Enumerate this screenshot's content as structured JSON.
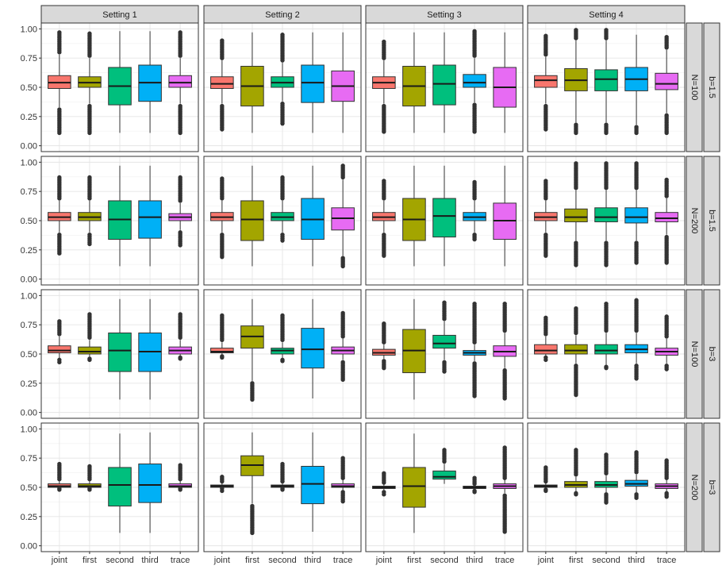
{
  "chart_data": {
    "type": "boxplot",
    "title": "",
    "xlabel": "",
    "ylabel": "",
    "ylim": [
      0,
      1
    ],
    "y_ticks": [
      "0.00",
      "0.25",
      "0.50",
      "0.75",
      "1.00"
    ],
    "categories": [
      "joint",
      "first",
      "second",
      "third",
      "trace"
    ],
    "columns": [
      "Setting 1",
      "Setting 2",
      "Setting 3",
      "Setting 4"
    ],
    "rows": [
      {
        "n_label": "N=100",
        "b_label": "b=1.5"
      },
      {
        "n_label": "N=200",
        "b_label": "b=1.5"
      },
      {
        "n_label": "N=100",
        "b_label": "b=3"
      },
      {
        "n_label": "N=200",
        "b_label": "b=3"
      }
    ],
    "colors": {
      "joint": "#F8766D",
      "first": "#A3A500",
      "second": "#00BF7D",
      "third": "#00B0F6",
      "trace": "#E76BF3"
    },
    "panels": [
      [
        {
          "q1": 0.49,
          "med": 0.54,
          "q3": 0.6,
          "lo": 0.33,
          "hi": 0.78,
          "out_lo": [
            0.11,
            0.31
          ],
          "out_hi": [
            0.8,
            0.97
          ]
        },
        {
          "q1": 0.5,
          "med": 0.54,
          "q3": 0.59,
          "lo": 0.36,
          "hi": 0.75,
          "out_lo": [
            0.11,
            0.34
          ],
          "out_hi": [
            0.77,
            0.96
          ]
        },
        {
          "q1": 0.35,
          "med": 0.51,
          "q3": 0.67,
          "lo": 0.11,
          "hi": 0.98
        },
        {
          "q1": 0.38,
          "med": 0.54,
          "q3": 0.69,
          "lo": 0.11,
          "hi": 0.98
        },
        {
          "q1": 0.5,
          "med": 0.54,
          "q3": 0.6,
          "lo": 0.36,
          "hi": 0.75,
          "out_lo": [
            0.11,
            0.34
          ],
          "out_hi": [
            0.77,
            0.97
          ]
        }
      ],
      [
        {
          "q1": 0.49,
          "med": 0.53,
          "q3": 0.59,
          "lo": 0.36,
          "hi": 0.73,
          "out_lo": [
            0.14,
            0.34
          ],
          "out_hi": [
            0.75,
            0.9
          ]
        },
        {
          "q1": 0.34,
          "med": 0.51,
          "q3": 0.68,
          "lo": 0.11,
          "hi": 0.97
        },
        {
          "q1": 0.5,
          "med": 0.54,
          "q3": 0.59,
          "lo": 0.38,
          "hi": 0.71,
          "out_lo": [
            0.19,
            0.36
          ],
          "out_hi": [
            0.73,
            0.95
          ]
        },
        {
          "q1": 0.37,
          "med": 0.54,
          "q3": 0.69,
          "lo": 0.11,
          "hi": 0.97
        },
        {
          "q1": 0.38,
          "med": 0.51,
          "q3": 0.64,
          "lo": 0.11,
          "hi": 0.97
        }
      ],
      [
        {
          "q1": 0.49,
          "med": 0.54,
          "q3": 0.59,
          "lo": 0.36,
          "hi": 0.73,
          "out_lo": [
            0.12,
            0.34
          ],
          "out_hi": [
            0.75,
            0.89
          ]
        },
        {
          "q1": 0.34,
          "med": 0.51,
          "q3": 0.68,
          "lo": 0.11,
          "hi": 0.97
        },
        {
          "q1": 0.35,
          "med": 0.53,
          "q3": 0.69,
          "lo": 0.11,
          "hi": 0.97
        },
        {
          "q1": 0.5,
          "med": 0.54,
          "q3": 0.61,
          "lo": 0.37,
          "hi": 0.75,
          "out_lo": [
            0.12,
            0.35
          ],
          "out_hi": [
            0.77,
            0.98
          ]
        },
        {
          "q1": 0.33,
          "med": 0.5,
          "q3": 0.67,
          "lo": 0.11,
          "hi": 0.97
        }
      ],
      [
        {
          "q1": 0.5,
          "med": 0.56,
          "q3": 0.6,
          "lo": 0.36,
          "hi": 0.76,
          "out_lo": [
            0.14,
            0.34
          ],
          "out_hi": [
            0.78,
            0.94
          ]
        },
        {
          "q1": 0.47,
          "med": 0.56,
          "q3": 0.66,
          "lo": 0.2,
          "hi": 0.9,
          "out_lo": [
            0.11,
            0.18
          ],
          "out_hi": [
            0.92,
            0.99
          ]
        },
        {
          "q1": 0.47,
          "med": 0.57,
          "q3": 0.65,
          "lo": 0.2,
          "hi": 0.9,
          "out_lo": [
            0.11,
            0.18
          ],
          "out_hi": [
            0.92,
            0.99
          ]
        },
        {
          "q1": 0.47,
          "med": 0.57,
          "q3": 0.67,
          "lo": 0.18,
          "hi": 0.95,
          "out_lo": [
            0.11,
            0.16
          ],
          "out_hi": []
        },
        {
          "q1": 0.48,
          "med": 0.53,
          "q3": 0.62,
          "lo": 0.28,
          "hi": 0.82,
          "out_lo": [
            0.11,
            0.26
          ],
          "out_hi": [
            0.84,
            0.93
          ]
        }
      ],
      [
        {
          "q1": 0.5,
          "med": 0.53,
          "q3": 0.57,
          "lo": 0.4,
          "hi": 0.67,
          "out_lo": [
            0.22,
            0.38
          ],
          "out_hi": [
            0.69,
            0.87
          ]
        },
        {
          "q1": 0.5,
          "med": 0.53,
          "q3": 0.57,
          "lo": 0.4,
          "hi": 0.67,
          "out_lo": [
            0.3,
            0.38
          ],
          "out_hi": [
            0.69,
            0.87
          ]
        },
        {
          "q1": 0.34,
          "med": 0.51,
          "q3": 0.67,
          "lo": 0.11,
          "hi": 0.97
        },
        {
          "q1": 0.35,
          "med": 0.53,
          "q3": 0.67,
          "lo": 0.11,
          "hi": 0.97
        },
        {
          "q1": 0.5,
          "med": 0.53,
          "q3": 0.56,
          "lo": 0.42,
          "hi": 0.65,
          "out_lo": [
            0.29,
            0.4
          ],
          "out_hi": [
            0.67,
            0.87
          ]
        }
      ],
      [
        {
          "q1": 0.5,
          "med": 0.53,
          "q3": 0.57,
          "lo": 0.4,
          "hi": 0.67,
          "out_lo": [
            0.19,
            0.38
          ],
          "out_hi": [
            0.69,
            0.86
          ]
        },
        {
          "q1": 0.33,
          "med": 0.51,
          "q3": 0.67,
          "lo": 0.11,
          "hi": 0.97
        },
        {
          "q1": 0.5,
          "med": 0.53,
          "q3": 0.57,
          "lo": 0.4,
          "hi": 0.67,
          "out_lo": [
            0.33,
            0.38
          ],
          "out_hi": [
            0.69,
            0.87
          ]
        },
        {
          "q1": 0.34,
          "med": 0.51,
          "q3": 0.69,
          "lo": 0.11,
          "hi": 0.97
        },
        {
          "q1": 0.42,
          "med": 0.52,
          "q3": 0.61,
          "lo": 0.2,
          "hi": 0.85,
          "out_lo": [
            0.11,
            0.18
          ],
          "out_hi": [
            0.87,
            0.97
          ]
        }
      ],
      [
        {
          "q1": 0.5,
          "med": 0.53,
          "q3": 0.57,
          "lo": 0.4,
          "hi": 0.67,
          "out_lo": [
            0.2,
            0.38
          ],
          "out_hi": [
            0.69,
            0.84
          ]
        },
        {
          "q1": 0.33,
          "med": 0.51,
          "q3": 0.69,
          "lo": 0.11,
          "hi": 0.97
        },
        {
          "q1": 0.36,
          "med": 0.54,
          "q3": 0.69,
          "lo": 0.11,
          "hi": 0.97
        },
        {
          "q1": 0.5,
          "med": 0.53,
          "q3": 0.57,
          "lo": 0.4,
          "hi": 0.67,
          "out_lo": [
            0.34,
            0.38
          ],
          "out_hi": [
            0.69,
            0.83
          ]
        },
        {
          "q1": 0.34,
          "med": 0.5,
          "q3": 0.65,
          "lo": 0.11,
          "hi": 0.97
        }
      ],
      [
        {
          "q1": 0.5,
          "med": 0.53,
          "q3": 0.57,
          "lo": 0.4,
          "hi": 0.67,
          "out_lo": [
            0.2,
            0.38
          ],
          "out_hi": [
            0.69,
            0.84
          ]
        },
        {
          "q1": 0.49,
          "med": 0.53,
          "q3": 0.6,
          "lo": 0.33,
          "hi": 0.76,
          "out_lo": [
            0.12,
            0.31
          ],
          "out_hi": [
            0.78,
            0.99
          ]
        },
        {
          "q1": 0.49,
          "med": 0.53,
          "q3": 0.61,
          "lo": 0.33,
          "hi": 0.76,
          "out_lo": [
            0.12,
            0.31
          ],
          "out_hi": [
            0.78,
            0.99
          ]
        },
        {
          "q1": 0.48,
          "med": 0.53,
          "q3": 0.61,
          "lo": 0.33,
          "hi": 0.76,
          "out_lo": [
            0.14,
            0.31
          ],
          "out_hi": [
            0.78,
            0.99
          ]
        },
        {
          "q1": 0.49,
          "med": 0.52,
          "q3": 0.57,
          "lo": 0.38,
          "hi": 0.69,
          "out_lo": [
            0.14,
            0.36
          ],
          "out_hi": [
            0.71,
            0.85
          ]
        }
      ],
      [
        {
          "q1": 0.51,
          "med": 0.53,
          "q3": 0.57,
          "lo": 0.43,
          "hi": 0.65,
          "out_lo": [
            0.43,
            0.45
          ],
          "out_hi": [
            0.67,
            0.78
          ]
        },
        {
          "q1": 0.5,
          "med": 0.52,
          "q3": 0.56,
          "lo": 0.45,
          "hi": 0.62,
          "out_lo": [
            0.45,
            0.46
          ],
          "out_hi": [
            0.64,
            0.84
          ]
        },
        {
          "q1": 0.35,
          "med": 0.53,
          "q3": 0.68,
          "lo": 0.11,
          "hi": 0.97
        },
        {
          "q1": 0.35,
          "med": 0.52,
          "q3": 0.68,
          "lo": 0.11,
          "hi": 0.97
        },
        {
          "q1": 0.5,
          "med": 0.53,
          "q3": 0.56,
          "lo": 0.46,
          "hi": 0.62,
          "out_lo": [
            0.46,
            0.47
          ],
          "out_hi": [
            0.64,
            0.84
          ]
        }
      ],
      [
        {
          "q1": 0.51,
          "med": 0.52,
          "q3": 0.55,
          "lo": 0.47,
          "hi": 0.6,
          "out_lo": [
            0.47,
            0.48
          ],
          "out_hi": [
            0.62,
            0.83
          ]
        },
        {
          "q1": 0.55,
          "med": 0.65,
          "q3": 0.74,
          "lo": 0.27,
          "hi": 0.97,
          "out_lo": [
            0.11,
            0.25
          ],
          "out_hi": []
        },
        {
          "q1": 0.5,
          "med": 0.53,
          "q3": 0.55,
          "lo": 0.46,
          "hi": 0.6,
          "out_lo": [
            0.44,
            0.45
          ],
          "out_hi": [
            0.62,
            0.83
          ]
        },
        {
          "q1": 0.38,
          "med": 0.54,
          "q3": 0.72,
          "lo": 0.12,
          "hi": 0.97
        },
        {
          "q1": 0.5,
          "med": 0.53,
          "q3": 0.56,
          "lo": 0.45,
          "hi": 0.63,
          "out_lo": [
            0.28,
            0.43
          ],
          "out_hi": [
            0.65,
            0.85
          ]
        }
      ],
      [
        {
          "q1": 0.49,
          "med": 0.51,
          "q3": 0.54,
          "lo": 0.46,
          "hi": 0.58,
          "out_lo": [
            0.38,
            0.44
          ],
          "out_hi": [
            0.6,
            0.76
          ]
        },
        {
          "q1": 0.34,
          "med": 0.53,
          "q3": 0.71,
          "lo": 0.11,
          "hi": 0.97
        },
        {
          "q1": 0.55,
          "med": 0.59,
          "q3": 0.66,
          "lo": 0.45,
          "hi": 0.78,
          "out_lo": [
            0.35,
            0.43
          ],
          "out_hi": [
            0.8,
            0.94
          ]
        },
        {
          "q1": 0.49,
          "med": 0.51,
          "q3": 0.53,
          "lo": 0.44,
          "hi": 0.58,
          "out_lo": [
            0.14,
            0.42
          ],
          "out_hi": [
            0.6,
            0.93
          ]
        },
        {
          "q1": 0.48,
          "med": 0.52,
          "q3": 0.57,
          "lo": 0.38,
          "hi": 0.68,
          "out_lo": [
            0.12,
            0.36
          ],
          "out_hi": [
            0.7,
            0.93
          ]
        }
      ],
      [
        {
          "q1": 0.5,
          "med": 0.53,
          "q3": 0.58,
          "lo": 0.45,
          "hi": 0.65,
          "out_lo": [
            0.45,
            0.47
          ],
          "out_hi": [
            0.67,
            0.81
          ]
        },
        {
          "q1": 0.5,
          "med": 0.53,
          "q3": 0.58,
          "lo": 0.42,
          "hi": 0.66,
          "out_lo": [
            0.15,
            0.4
          ],
          "out_hi": [
            0.68,
            0.89
          ]
        },
        {
          "q1": 0.5,
          "med": 0.53,
          "q3": 0.58,
          "lo": 0.4,
          "hi": 0.68,
          "out_lo": [
            0.38,
            0.39
          ],
          "out_hi": [
            0.7,
            0.93
          ]
        },
        {
          "q1": 0.51,
          "med": 0.54,
          "q3": 0.58,
          "lo": 0.42,
          "hi": 0.68,
          "out_lo": [
            0.29,
            0.4
          ],
          "out_hi": [
            0.7,
            0.96
          ]
        },
        {
          "q1": 0.49,
          "med": 0.52,
          "q3": 0.55,
          "lo": 0.42,
          "hi": 0.63,
          "out_lo": [
            0.37,
            0.4
          ],
          "out_hi": [
            0.65,
            0.82
          ]
        }
      ],
      [
        {
          "q1": 0.5,
          "med": 0.51,
          "q3": 0.53,
          "lo": 0.48,
          "hi": 0.56,
          "out_lo": [
            0.48,
            0.49
          ],
          "out_hi": [
            0.57,
            0.7
          ]
        },
        {
          "q1": 0.5,
          "med": 0.51,
          "q3": 0.53,
          "lo": 0.48,
          "hi": 0.56,
          "out_lo": [
            0.48,
            0.49
          ],
          "out_hi": [
            0.57,
            0.68
          ]
        },
        {
          "q1": 0.34,
          "med": 0.52,
          "q3": 0.67,
          "lo": 0.11,
          "hi": 0.96
        },
        {
          "q1": 0.37,
          "med": 0.52,
          "q3": 0.7,
          "lo": 0.11,
          "hi": 0.97
        },
        {
          "q1": 0.5,
          "med": 0.51,
          "q3": 0.53,
          "lo": 0.48,
          "hi": 0.56,
          "out_lo": [
            0.48,
            0.49
          ],
          "out_hi": [
            0.57,
            0.69
          ]
        }
      ],
      [
        {
          "q1": 0.5,
          "med": 0.51,
          "q3": 0.52,
          "lo": 0.49,
          "hi": 0.54,
          "out_lo": [
            0.47,
            0.49
          ],
          "out_hi": [
            0.55,
            0.59
          ]
        },
        {
          "q1": 0.6,
          "med": 0.69,
          "q3": 0.77,
          "lo": 0.36,
          "hi": 0.97,
          "out_lo": [
            0.11,
            0.34
          ],
          "out_hi": []
        },
        {
          "q1": 0.5,
          "med": 0.51,
          "q3": 0.52,
          "lo": 0.48,
          "hi": 0.54,
          "out_lo": [
            0.48,
            0.49
          ],
          "out_hi": [
            0.55,
            0.7
          ]
        },
        {
          "q1": 0.36,
          "med": 0.53,
          "q3": 0.68,
          "lo": 0.12,
          "hi": 0.97
        },
        {
          "q1": 0.5,
          "med": 0.51,
          "q3": 0.53,
          "lo": 0.47,
          "hi": 0.57,
          "out_lo": [
            0.38,
            0.46
          ],
          "out_hi": [
            0.58,
            0.75
          ]
        }
      ],
      [
        {
          "q1": 0.49,
          "med": 0.5,
          "q3": 0.51,
          "lo": 0.47,
          "hi": 0.53,
          "out_lo": [
            0.44,
            0.46
          ],
          "out_hi": [
            0.54,
            0.62
          ]
        },
        {
          "q1": 0.33,
          "med": 0.51,
          "q3": 0.67,
          "lo": 0.11,
          "hi": 0.96
        },
        {
          "q1": 0.57,
          "med": 0.59,
          "q3": 0.64,
          "lo": 0.53,
          "hi": 0.7,
          "out_lo": [],
          "out_hi": [
            0.72,
            0.82
          ]
        },
        {
          "q1": 0.49,
          "med": 0.5,
          "q3": 0.51,
          "lo": 0.48,
          "hi": 0.52,
          "out_lo": [
            0.46,
            0.47
          ],
          "out_hi": [
            0.53,
            0.58
          ]
        },
        {
          "q1": 0.49,
          "med": 0.51,
          "q3": 0.53,
          "lo": 0.45,
          "hi": 0.57,
          "out_lo": [
            0.12,
            0.43
          ],
          "out_hi": [
            0.58,
            0.84
          ]
        }
      ],
      [
        {
          "q1": 0.5,
          "med": 0.51,
          "q3": 0.52,
          "lo": 0.48,
          "hi": 0.54,
          "out_lo": [
            0.47,
            0.48
          ],
          "out_hi": [
            0.55,
            0.67
          ]
        },
        {
          "q1": 0.5,
          "med": 0.52,
          "q3": 0.55,
          "lo": 0.46,
          "hi": 0.59,
          "out_lo": [
            0.44,
            0.45
          ],
          "out_hi": [
            0.61,
            0.82
          ]
        },
        {
          "q1": 0.5,
          "med": 0.52,
          "q3": 0.55,
          "lo": 0.45,
          "hi": 0.6,
          "out_lo": [
            0.37,
            0.44
          ],
          "out_hi": [
            0.62,
            0.78
          ]
        },
        {
          "q1": 0.51,
          "med": 0.53,
          "q3": 0.56,
          "lo": 0.45,
          "hi": 0.61,
          "out_lo": [
            0.41,
            0.44
          ],
          "out_hi": [
            0.63,
            0.8
          ]
        },
        {
          "q1": 0.49,
          "med": 0.51,
          "q3": 0.53,
          "lo": 0.46,
          "hi": 0.57,
          "out_lo": [
            0.42,
            0.45
          ],
          "out_hi": [
            0.58,
            0.73
          ]
        }
      ]
    ]
  }
}
